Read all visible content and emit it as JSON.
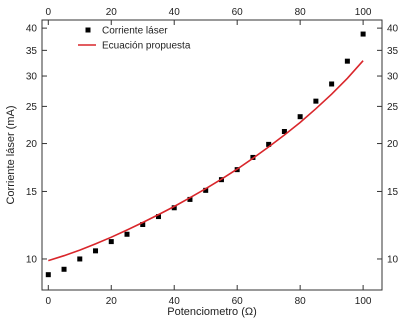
{
  "chart_data": {
    "type": "scatter",
    "xlabel": "Potenciometro (Ω)",
    "ylabel": "Corriente láser (mA)",
    "xlim": [
      -2,
      106
    ],
    "ylim": [
      8.3,
      42
    ],
    "y_scale": "log",
    "x_ticks": [
      0,
      20,
      40,
      60,
      80,
      100
    ],
    "y_ticks": [
      10,
      15,
      20,
      25,
      30,
      35,
      40
    ],
    "mirror_axes": "top-and-right",
    "grid": false,
    "legend_position": "top-left",
    "series": [
      {
        "name": "Corriente láser",
        "kind": "scatter",
        "marker": "square",
        "color": "#000000",
        "x": [
          0,
          5,
          10,
          15,
          20,
          25,
          30,
          35,
          40,
          45,
          50,
          55,
          60,
          65,
          70,
          75,
          80,
          85,
          90,
          95,
          100
        ],
        "y": [
          9.1,
          9.4,
          10.0,
          10.5,
          11.1,
          11.6,
          12.3,
          12.9,
          13.6,
          14.3,
          15.1,
          16.1,
          17.1,
          18.4,
          19.9,
          21.5,
          23.5,
          25.8,
          28.6,
          32.8,
          38.6
        ]
      },
      {
        "name": "Ecuación propuesta",
        "kind": "line",
        "color": "#d9262b",
        "x": [
          0,
          5,
          10,
          15,
          20,
          25,
          30,
          35,
          40,
          45,
          50,
          55,
          60,
          65,
          70,
          75,
          80,
          85,
          90,
          95,
          100
        ],
        "y": [
          9.9,
          10.2,
          10.55,
          10.95,
          11.4,
          11.9,
          12.45,
          13.05,
          13.7,
          14.45,
          15.25,
          16.15,
          17.15,
          18.3,
          19.6,
          21.05,
          22.7,
          24.65,
          26.9,
          29.6,
          32.9
        ]
      }
    ]
  }
}
